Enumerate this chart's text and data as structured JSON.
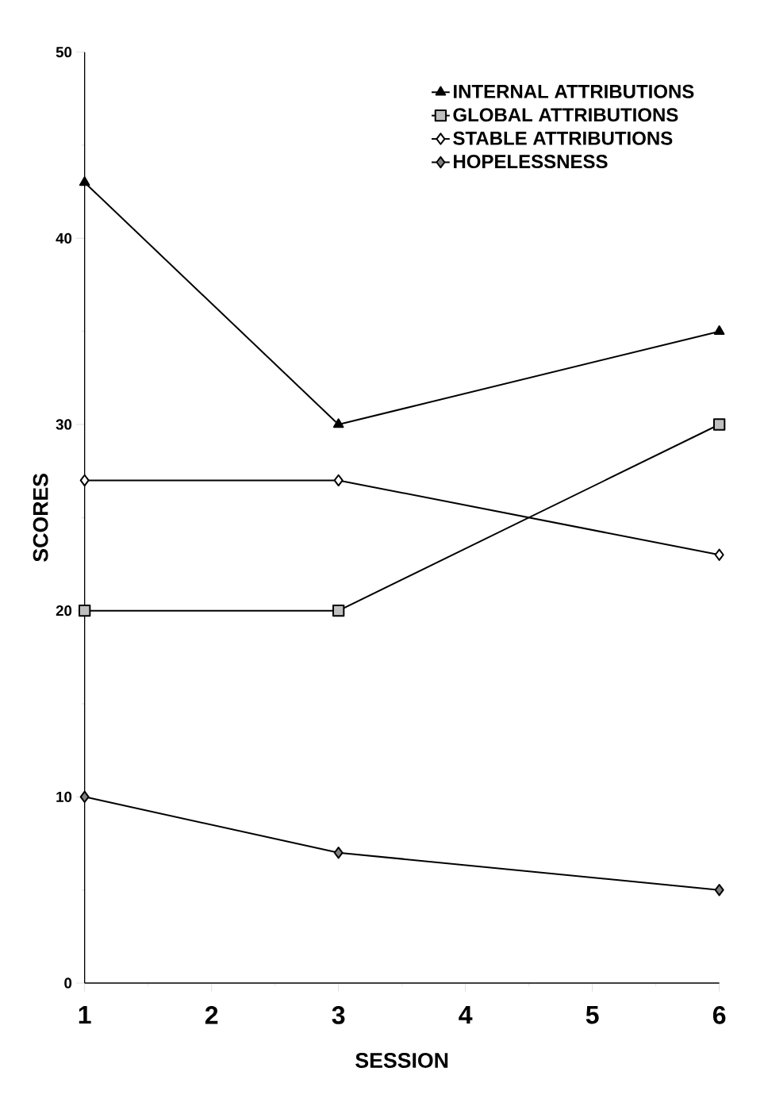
{
  "chart_data": {
    "type": "line",
    "xlabel": "SESSION",
    "ylabel": "SCORES",
    "x": [
      1,
      3,
      6
    ],
    "xlim": [
      1,
      6
    ],
    "xticks": [
      1,
      2,
      3,
      4,
      5,
      6
    ],
    "ylim": [
      0,
      50
    ],
    "yticks": [
      0,
      10,
      20,
      30,
      40,
      50
    ],
    "grid": false,
    "legend": "top right",
    "line_style": "solid",
    "series": [
      {
        "name": "INTERNAL ATTRIBUTIONS",
        "color": "#000000",
        "marker": "triangle",
        "values": [
          43,
          30,
          35
        ]
      },
      {
        "name": "GLOBAL ATTRIBUTIONS",
        "color": "#000000",
        "marker": "square",
        "values": [
          20,
          20,
          30
        ]
      },
      {
        "name": "STABLE ATTRIBUTIONS",
        "color": "#000000",
        "marker": "diamond",
        "values": [
          27,
          27,
          23
        ]
      },
      {
        "name": "HOPELESSNESS",
        "color": "#000000",
        "marker": "diamond",
        "values": [
          10,
          7,
          5
        ]
      }
    ]
  }
}
